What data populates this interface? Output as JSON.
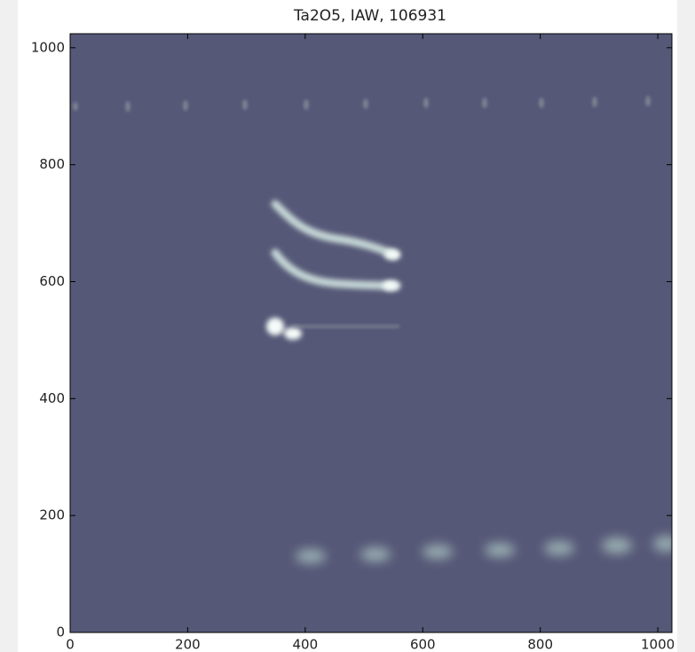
{
  "chart_data": {
    "type": "image",
    "title": "Ta2O5, IAW, 106931",
    "xlim": [
      0,
      1024
    ],
    "ylim": [
      0,
      1024
    ],
    "xticks": [
      0,
      200,
      400,
      600,
      800,
      1000
    ],
    "yticks": [
      0,
      200,
      400,
      600,
      800,
      1000
    ],
    "color": "#565877"
  }
}
